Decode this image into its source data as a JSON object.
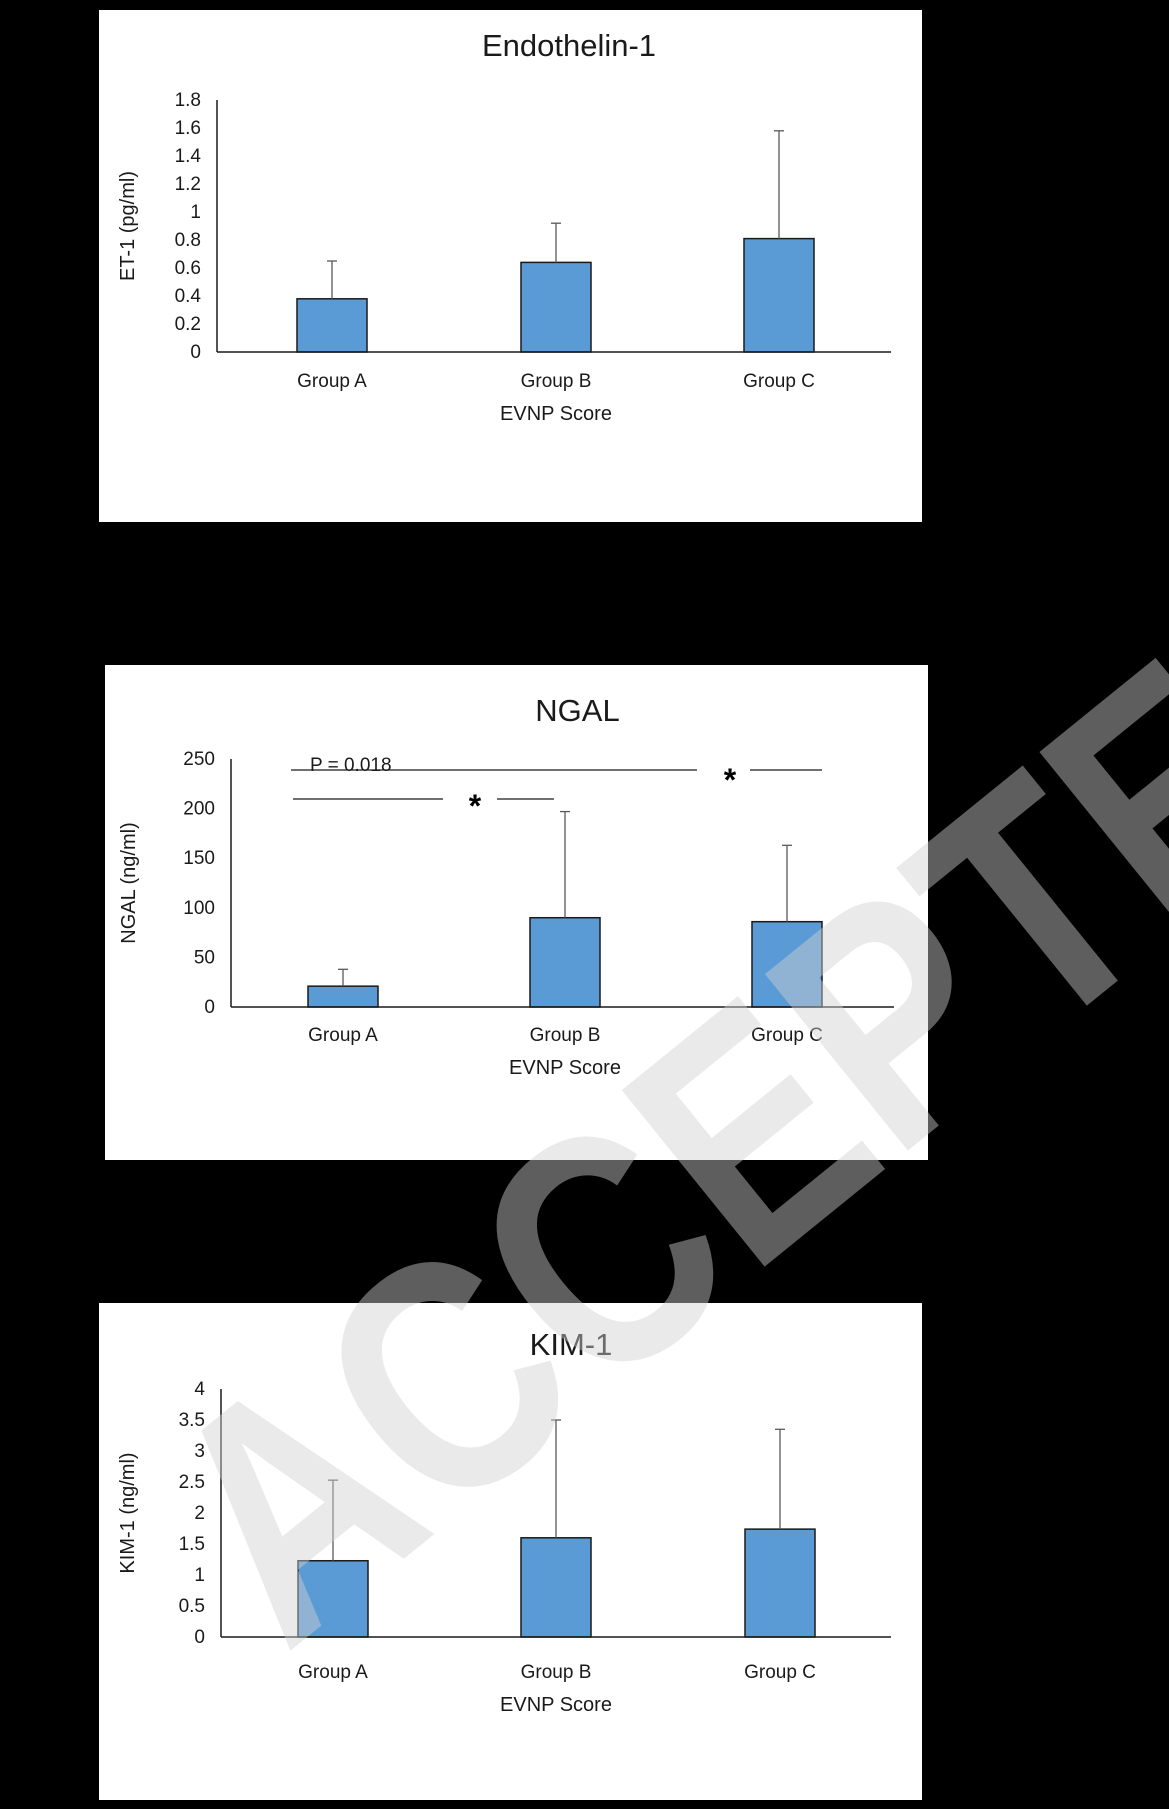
{
  "chart_data": [
    {
      "type": "bar",
      "title": "Endothelin-1",
      "xlabel": "EVNP Score",
      "ylabel": "ET-1 (pg/ml)",
      "categories": [
        "Group A",
        "Group B",
        "Group C"
      ],
      "values": [
        0.38,
        0.64,
        0.81
      ],
      "error_upper": [
        0.65,
        0.92,
        1.58
      ],
      "ylim": [
        0,
        1.8
      ],
      "yticks": [
        0,
        0.2,
        0.4,
        0.6,
        0.8,
        1,
        1.2,
        1.4,
        1.6,
        1.8
      ],
      "ytick_labels": [
        "0",
        "0.2",
        "0.4",
        "0.6",
        "0.8",
        "1",
        "1.2",
        "1.4",
        "1.6",
        "1.8"
      ],
      "bar_color": "#5B9BD5",
      "grid": false,
      "annotations": []
    },
    {
      "type": "bar",
      "title": "NGAL",
      "xlabel": "EVNP Score",
      "ylabel": "NGAL  (ng/ml)",
      "categories": [
        "Group A",
        "Group B",
        "Group C"
      ],
      "values": [
        21,
        90,
        86
      ],
      "error_upper": [
        38,
        197,
        163
      ],
      "ylim": [
        0,
        250
      ],
      "yticks": [
        0,
        50,
        100,
        150,
        200,
        250
      ],
      "ytick_labels": [
        "0",
        "50",
        "100",
        "150",
        "200",
        "250"
      ],
      "bar_color": "#5B9BD5",
      "grid": false,
      "annotations": [
        {
          "text": "P = 0.018"
        },
        {
          "text": "*",
          "between": [
            "Group A",
            "Group C"
          ]
        },
        {
          "text": "*",
          "between": [
            "Group A",
            "Group B"
          ]
        }
      ]
    },
    {
      "type": "bar",
      "title": "KIM-1",
      "xlabel": "EVNP Score",
      "ylabel": "KIM-1 (ng/ml)",
      "categories": [
        "Group A",
        "Group B",
        "Group C"
      ],
      "values": [
        1.23,
        1.6,
        1.74
      ],
      "error_upper": [
        2.53,
        3.5,
        3.35
      ],
      "ylim": [
        0,
        4
      ],
      "yticks": [
        0,
        0.5,
        1,
        1.5,
        2,
        2.5,
        3,
        3.5,
        4
      ],
      "ytick_labels": [
        "0",
        "0.5",
        "1",
        "1.5",
        "2",
        "2.5",
        "3",
        "3.5",
        "4"
      ],
      "bar_color": "#5B9BD5",
      "grid": false,
      "annotations": []
    }
  ],
  "watermark": {
    "text": "ACCEPTED",
    "color": "#d0d0d0"
  }
}
